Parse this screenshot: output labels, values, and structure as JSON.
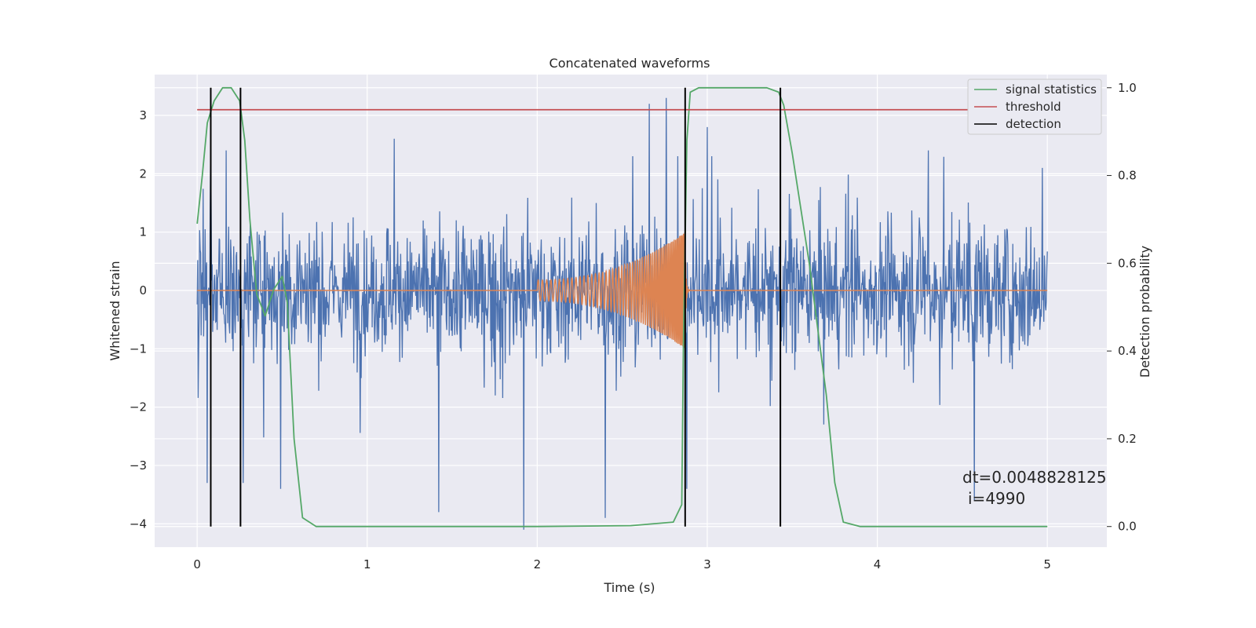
{
  "chart_data": {
    "type": "line",
    "title": "Concatenated waveforms",
    "xlabel": "Time (s)",
    "ylabel": "Whitened strain",
    "y2label": "Detection probability",
    "xlim": [
      -0.25,
      5.35
    ],
    "ylim": [
      -4.4,
      3.7
    ],
    "y2lim": [
      -0.047,
      1.03
    ],
    "xticks": [
      0,
      1,
      2,
      3,
      4,
      5
    ],
    "xtick_labels": [
      "0",
      "1",
      "2",
      "3",
      "4",
      "5"
    ],
    "yticks": [
      3,
      2,
      1,
      0,
      -1,
      -2,
      -3,
      -4
    ],
    "ytick_labels": [
      "3",
      "2",
      "1",
      "0",
      "−1",
      "−2",
      "−3",
      "−4"
    ],
    "y2ticks": [
      1.0,
      0.8,
      0.6,
      0.4,
      0.2,
      0.0
    ],
    "y2tick_labels": [
      "1.0",
      "0.8",
      "0.6",
      "0.4",
      "0.2",
      "0.0"
    ],
    "grid": true,
    "legend_position": "top-right",
    "legend": [
      {
        "label": "signal statistics",
        "color": "#55a868"
      },
      {
        "label": "threshold",
        "color": "#c44e52"
      },
      {
        "label": "detection",
        "color": "#000000"
      }
    ],
    "series": [
      {
        "name": "",
        "axis": "left",
        "color": "#4c72b0",
        "description": "whitened noisy strain, roughly symmetric about 0 with spikes between -4.1 and 3.3",
        "x_range": [
          0,
          5
        ],
        "envelope_peaks": {
          "max": [
            [
              0.08,
              2.6
            ],
            [
              0.17,
              2.4
            ],
            [
              1.16,
              2.6
            ],
            [
              2.66,
              3.2
            ],
            [
              2.76,
              3.3
            ],
            [
              3.0,
              2.8
            ],
            [
              4.3,
              2.4
            ],
            [
              4.97,
              2.1
            ]
          ],
          "min": [
            [
              0.06,
              -3.3
            ],
            [
              0.27,
              -3.3
            ],
            [
              0.49,
              -3.4
            ],
            [
              1.42,
              -3.8
            ],
            [
              1.92,
              -4.1
            ],
            [
              2.4,
              -3.9
            ],
            [
              2.88,
              -3.4
            ],
            [
              4.57,
              -3.6
            ]
          ]
        }
      },
      {
        "name": "",
        "axis": "left",
        "color": "#dd8452",
        "description": "injected chirp waveform",
        "zero_until": 2.0,
        "chirp_start": 2.0,
        "chirp_merger": 2.87,
        "chirp_start_amplitude": 0.18,
        "chirp_peak_amplitude": 1.0
      },
      {
        "name": "signal statistics",
        "axis": "right",
        "color": "#55a868",
        "x": [
          0.0,
          0.03,
          0.06,
          0.1,
          0.15,
          0.2,
          0.25,
          0.28,
          0.31,
          0.35,
          0.4,
          0.45,
          0.5,
          0.53,
          0.57,
          0.62,
          0.7,
          0.9,
          1.5,
          2.0,
          2.55,
          2.8,
          2.85,
          2.86,
          2.88,
          2.9,
          2.95,
          3.0,
          3.2,
          3.35,
          3.42,
          3.45,
          3.5,
          3.6,
          3.7,
          3.75,
          3.8,
          3.9,
          5.0
        ],
        "y": [
          0.69,
          0.8,
          0.92,
          0.97,
          1.0,
          1.0,
          0.97,
          0.88,
          0.7,
          0.53,
          0.48,
          0.54,
          0.57,
          0.51,
          0.2,
          0.02,
          0.0,
          0.0,
          0.0,
          0.0,
          0.002,
          0.01,
          0.05,
          0.42,
          0.88,
          0.99,
          1.0,
          1.0,
          1.0,
          1.0,
          0.99,
          0.96,
          0.85,
          0.6,
          0.3,
          0.1,
          0.01,
          0.0,
          0.0
        ]
      },
      {
        "name": "threshold",
        "axis": "right",
        "color": "#c44e52",
        "x": [
          0,
          5
        ],
        "y": [
          0.95,
          0.95
        ]
      }
    ],
    "detections": [
      0.08,
      0.255,
      2.87,
      3.43
    ],
    "annotation": {
      "text_line1": "dt=0.0048828125",
      "text_line2": "i=4990",
      "x": 4.53,
      "y": -3.35
    }
  }
}
